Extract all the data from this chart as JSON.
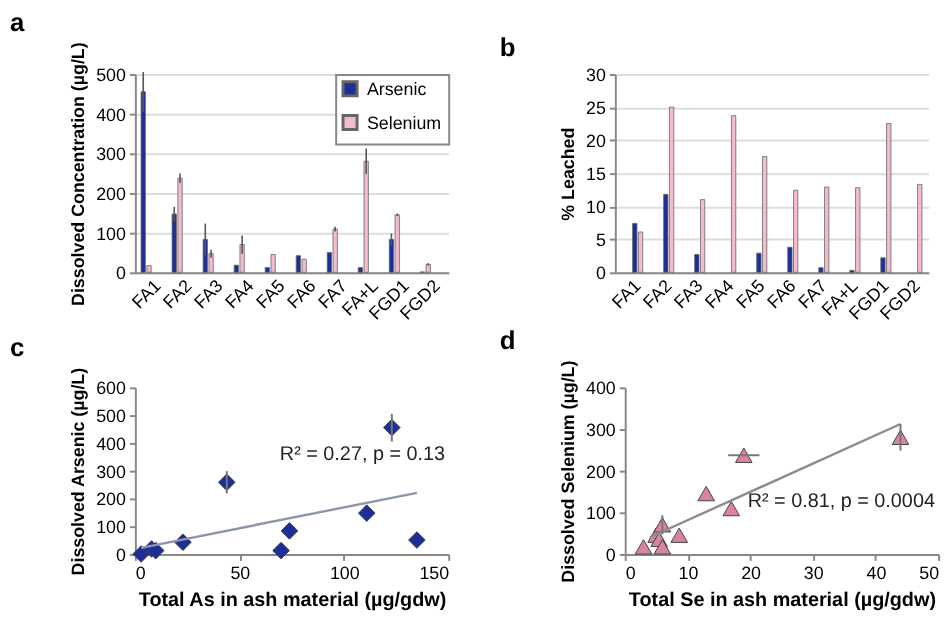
{
  "chart_data": [
    {
      "type": "bar",
      "title": "a",
      "ylabel": "Dissolved Concentration (µg/L)",
      "categories": [
        "FA1",
        "FA2",
        "FA3",
        "FA4",
        "FA5",
        "FA6",
        "FA7",
        "FA+L",
        "FGD1",
        "FGD2"
      ],
      "ylim": [
        0,
        500
      ],
      "yticks": [
        0,
        100,
        200,
        300,
        400,
        500
      ],
      "grid": "y",
      "legend": "top right",
      "series": [
        {
          "name": "Arsenic",
          "color": "#1c2f99",
          "values": [
            455,
            147,
            83,
            18,
            12,
            42,
            50,
            12,
            83,
            1
          ],
          "errors": [
            50,
            18,
            40,
            null,
            null,
            null,
            null,
            null,
            15,
            null
          ]
        },
        {
          "name": "Selenium",
          "color": "#f2bccb",
          "values": [
            17,
            237,
            47,
            70,
            45,
            33,
            109,
            280,
            145,
            20
          ],
          "errors": [
            null,
            12,
            10,
            23,
            null,
            null,
            6,
            32,
            3,
            3
          ]
        }
      ]
    },
    {
      "type": "bar",
      "title": "b",
      "ylabel": "% Leached",
      "categories": [
        "FA1",
        "FA2",
        "FA3",
        "FA4",
        "FA5",
        "FA6",
        "FA7",
        "FA+L",
        "FGD1",
        "FGD2"
      ],
      "ylim": [
        0,
        30
      ],
      "yticks": [
        0,
        5,
        10,
        15,
        20,
        25,
        30
      ],
      "grid": "y",
      "series": [
        {
          "color": "#1c2f99",
          "values": [
            7.4,
            11.8,
            2.7,
            null,
            2.9,
            3.8,
            0.7,
            0.3,
            2.2,
            null
          ]
        },
        {
          "color": "#f2bccb",
          "values": [
            6.1,
            25,
            11,
            23.7,
            17.5,
            12.4,
            12.9,
            12.8,
            22.5,
            13.3
          ]
        }
      ]
    },
    {
      "type": "scatter",
      "title": "c",
      "xlabel": "Total As in ash material (µg/gdw)",
      "ylabel": "Dissolved Arsenic (µg/L)",
      "xlim": [
        0,
        150
      ],
      "xticks": [
        0,
        50,
        100,
        150
      ],
      "ylim": [
        0,
        600
      ],
      "yticks": [
        0,
        100,
        200,
        300,
        400,
        500,
        600
      ],
      "marker": "diamond",
      "annotations": [
        "R² = 0.27, p = 0.13"
      ],
      "series": [
        {
          "color": "#1c2f99",
          "x": [
            3,
            8,
            10,
            23,
            44,
            70,
            74,
            111,
            123,
            135
          ],
          "values": [
            0,
            18,
            12,
            42,
            258,
            12,
            83,
            147,
            455,
            50
          ],
          "errors": [
            null,
            null,
            null,
            null,
            40,
            null,
            null,
            null,
            50,
            null
          ]
        },
        {
          "type": "line",
          "marker": "none",
          "color": "#8c96a8",
          "x": [
            3,
            135
          ],
          "values": [
            22,
            220
          ]
        }
      ]
    },
    {
      "type": "scatter",
      "title": "d",
      "xlabel": "Total Se in ash material (µg/gdw)",
      "ylabel": "Dissolved Selenium (µg/L)",
      "xlim": [
        0,
        50
      ],
      "xticks": [
        0,
        10,
        20,
        30,
        40,
        50
      ],
      "ylim": [
        0,
        400
      ],
      "yticks": [
        0,
        100,
        200,
        300,
        400
      ],
      "marker": "triangle",
      "annotations": [
        "R² = 0.81, p = 0.0004"
      ],
      "series": [
        {
          "color": "#d9849e",
          "x": [
            3,
            5,
            5.5,
            6,
            6,
            8.7,
            13,
            17,
            19,
            44
          ],
          "values": [
            17,
            45,
            35,
            70,
            17,
            45,
            145,
            109,
            237,
            280
          ],
          "errors": [
            null,
            null,
            null,
            23,
            null,
            null,
            null,
            null,
            null,
            32
          ],
          "xerrors": [
            null,
            null,
            null,
            null,
            null,
            null,
            null,
            null,
            2.5,
            null
          ]
        },
        {
          "type": "line",
          "marker": "none",
          "color": "#8c8c8c",
          "x": [
            4,
            44
          ],
          "values": [
            40,
            312
          ]
        }
      ]
    }
  ]
}
